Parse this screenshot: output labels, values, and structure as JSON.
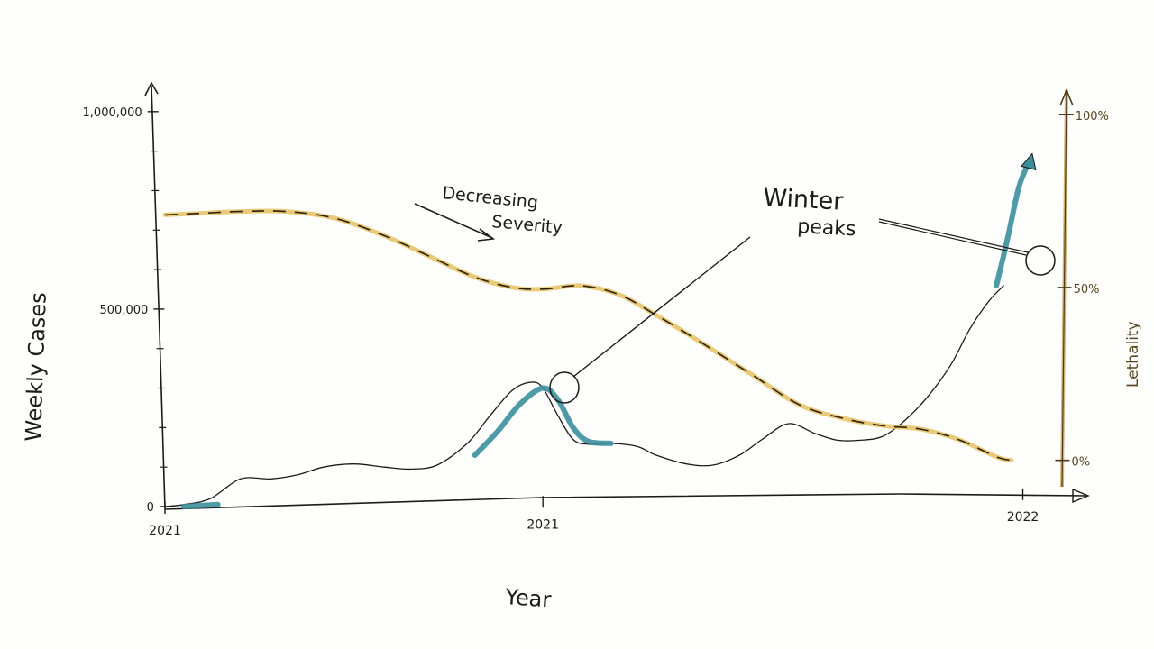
{
  "colors": {
    "ink": "#1b1b1b",
    "severity": "#e7c46a",
    "severity_text": "#5a4620",
    "highlight": "#3b8f9c",
    "paper": "#fefefc"
  },
  "annotations": {
    "decreasing": "Decreasing",
    "severity": "Severity",
    "winter": "Winter",
    "peaks": "peaks"
  },
  "chart_data": {
    "type": "line",
    "xlabel": "Year",
    "ylabel": "Weekly Cases",
    "y2label": "Lethality",
    "x_ticks": [
      "2021",
      "2021",
      "2022"
    ],
    "x_tick_positions": [
      0,
      1,
      2.27
    ],
    "xlim": [
      0,
      2.4
    ],
    "y_ticks": [
      {
        "value": 0,
        "label": "0"
      },
      {
        "value": 500000,
        "label": "500,000"
      },
      {
        "value": 1000000,
        "label": "1,000,000"
      }
    ],
    "ylim": [
      0,
      1100000
    ],
    "y2_ticks": [
      {
        "value": 0,
        "label": "0%"
      },
      {
        "value": 50,
        "label": "50%"
      },
      {
        "value": 100,
        "label": "100%"
      }
    ],
    "y2lim": [
      -4,
      105
    ],
    "series": [
      {
        "axis": "left",
        "style": "thin-ink",
        "x": [
          0,
          0.05,
          0.12,
          0.2,
          0.28,
          0.35,
          0.42,
          0.5,
          0.58,
          0.65,
          0.72,
          0.8,
          0.86,
          0.92,
          0.97,
          1.0,
          1.04,
          1.08,
          1.12,
          1.18,
          1.25,
          1.3,
          1.38,
          1.45,
          1.52,
          1.58,
          1.65,
          1.72,
          1.78,
          1.84,
          1.9,
          1.96,
          2.02,
          2.08,
          2.13,
          2.18,
          2.22
        ],
        "y": [
          0,
          5000,
          20000,
          70000,
          70000,
          80000,
          100000,
          108000,
          100000,
          95000,
          105000,
          160000,
          230000,
          295000,
          315000,
          300000,
          230000,
          170000,
          158000,
          160000,
          152000,
          130000,
          108000,
          105000,
          130000,
          170000,
          210000,
          185000,
          168000,
          168000,
          178000,
          220000,
          280000,
          360000,
          450000,
          520000,
          560000
        ]
      },
      {
        "axis": "right",
        "style": "thick-gold-dashed",
        "x": [
          0,
          0.1,
          0.2,
          0.32,
          0.45,
          0.58,
          0.7,
          0.82,
          0.92,
          1.0,
          1.1,
          1.2,
          1.3,
          1.42,
          1.55,
          1.68,
          1.8,
          1.9,
          2.0,
          2.1,
          2.2,
          2.24
        ],
        "y": [
          71,
          71.5,
          72,
          72,
          70,
          65,
          59,
          53,
          50,
          49.5,
          50.5,
          48,
          42,
          34,
          25,
          16,
          12,
          10,
          9,
          6,
          1,
          0
        ]
      }
    ],
    "highlights": [
      {
        "x": [
          0.05,
          0.14
        ],
        "y": [
          0,
          5000
        ]
      },
      {
        "x": [
          0.82,
          0.88,
          0.94,
          1.0,
          1.04,
          1.08,
          1.12,
          1.18
        ],
        "y": [
          130000,
          190000,
          260000,
          300000,
          270000,
          200000,
          165000,
          160000
        ]
      },
      {
        "x": [
          2.2,
          2.23,
          2.26,
          2.29
        ],
        "y": [
          560000,
          680000,
          810000,
          880000
        ]
      }
    ]
  }
}
